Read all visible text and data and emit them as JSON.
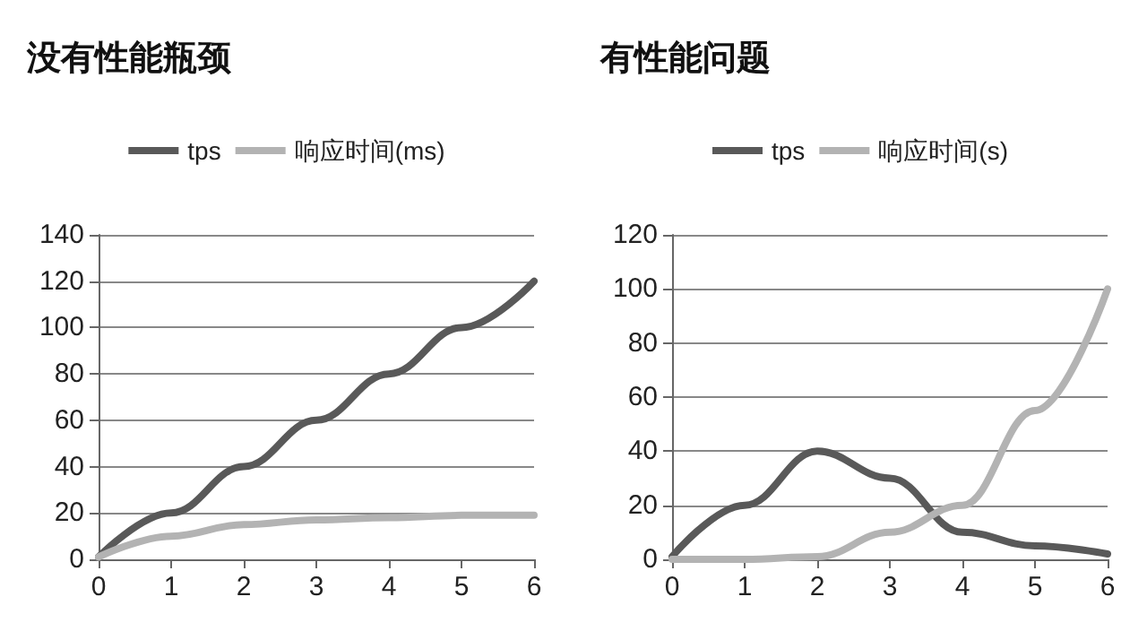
{
  "chart_data": [
    {
      "type": "line",
      "title": "没有性能瓶颈",
      "x": [
        0,
        1,
        2,
        3,
        4,
        5,
        6
      ],
      "series": [
        {
          "name": "tps",
          "color": "#595959",
          "values": [
            1,
            20,
            40,
            60,
            80,
            100,
            120
          ]
        },
        {
          "name": "响应时间(ms)",
          "color": "#b3b3b3",
          "values": [
            1,
            10,
            15,
            17,
            18,
            19,
            19
          ]
        }
      ],
      "xlim": [
        0,
        6
      ],
      "xticks": [
        0,
        1,
        2,
        3,
        4,
        5,
        6
      ],
      "ylim": [
        0,
        140
      ],
      "yticks": [
        0,
        20,
        40,
        60,
        80,
        100,
        120,
        140
      ],
      "grid": "y",
      "legend": "top",
      "marker": "none",
      "line_style": "solid"
    },
    {
      "type": "line",
      "title": "有性能问题",
      "x": [
        0,
        1,
        2,
        3,
        4,
        5,
        6
      ],
      "series": [
        {
          "name": "tps",
          "color": "#595959",
          "values": [
            1,
            20,
            40,
            30,
            10,
            5,
            2
          ]
        },
        {
          "name": "响应时间(s)",
          "color": "#b3b3b3",
          "values": [
            0,
            0,
            1,
            10,
            20,
            55,
            100
          ]
        }
      ],
      "xlim": [
        0,
        6
      ],
      "xticks": [
        0,
        1,
        2,
        3,
        4,
        5,
        6
      ],
      "ylim": [
        0,
        120
      ],
      "yticks": [
        0,
        20,
        40,
        60,
        80,
        100,
        120
      ],
      "grid": "y",
      "legend": "top",
      "marker": "none",
      "line_style": "solid"
    }
  ]
}
